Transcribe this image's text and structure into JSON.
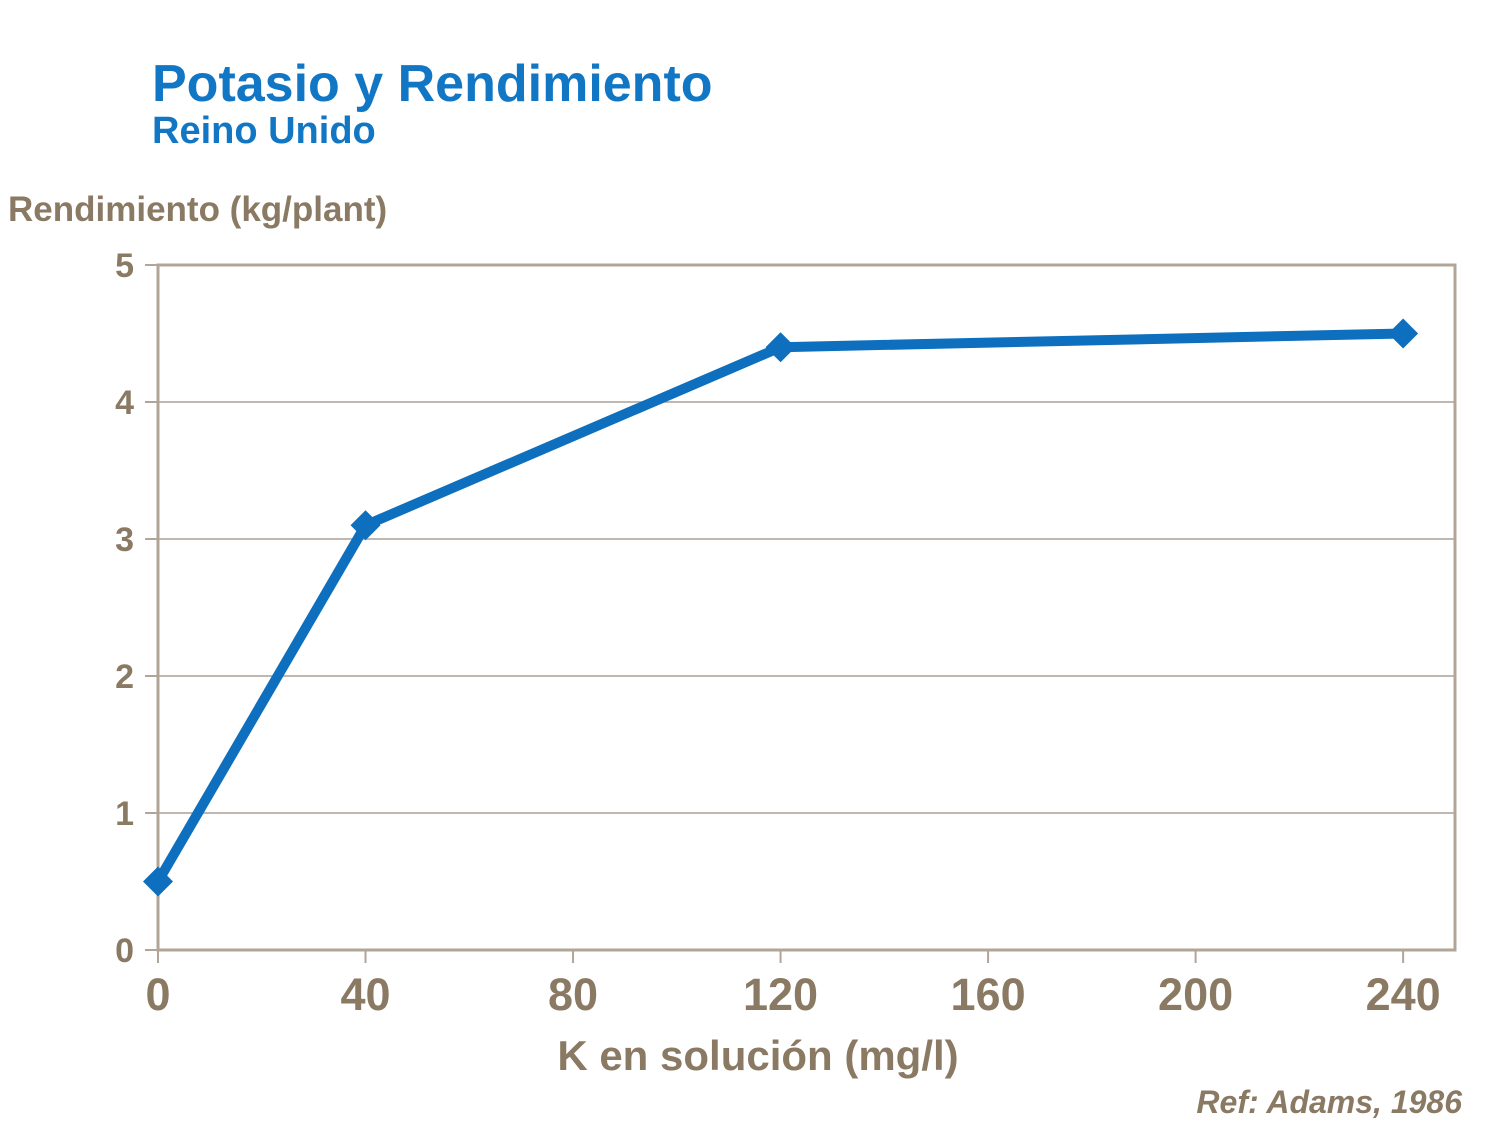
{
  "header": {
    "title": "Potasio y Rendimiento",
    "subtitle": "Reino Unido"
  },
  "footer": {
    "reference": "Ref: Adams, 1986"
  },
  "colors": {
    "title_blue": "#1177c5",
    "line_blue": "#0d6fbd",
    "axis_text_brown": "#8a7a64",
    "frame_tan": "#b2a598",
    "gridline_gray": "#a8a096"
  },
  "chart_data": {
    "type": "line",
    "title": "Potasio y Rendimiento",
    "subtitle": "Reino Unido",
    "xlabel": "K en solución (mg/l)",
    "ylabel": "Rendimiento (kg/plant)",
    "x": [
      0,
      40,
      120,
      240
    ],
    "series": [
      {
        "name": "Rendimiento",
        "values": [
          0.5,
          3.1,
          4.4,
          4.5
        ]
      }
    ],
    "xticks": [
      0,
      40,
      80,
      120,
      160,
      200,
      240
    ],
    "yticks": [
      0,
      1,
      2,
      3,
      4,
      5
    ],
    "xlim": [
      0,
      250
    ],
    "ylim": [
      0,
      5
    ],
    "grid": "horizontal",
    "legend": "none",
    "marker": "diamond",
    "annotation": "Ref: Adams, 1986"
  }
}
